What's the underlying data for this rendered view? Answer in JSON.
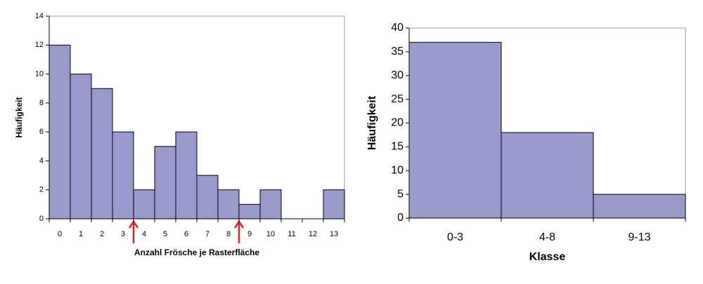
{
  "chart_data": [
    {
      "type": "bar",
      "y_label": "Häufigkeit",
      "x_label": "Anzahl Frösche je Rasterfläche",
      "categories": [
        "0",
        "1",
        "2",
        "3",
        "4",
        "5",
        "6",
        "7",
        "8",
        "9",
        "10",
        "11",
        "12",
        "13"
      ],
      "values": [
        12,
        10,
        9,
        6,
        2,
        5,
        6,
        3,
        2,
        1,
        2,
        0,
        0,
        2
      ],
      "color": "#9999cc",
      "ylim": [
        0,
        14
      ],
      "yticks": [
        0,
        2,
        4,
        6,
        8,
        10,
        12,
        14
      ],
      "grid": false
    },
    {
      "type": "bar",
      "y_label": "Häufigkeit",
      "x_label": "Klasse",
      "categories": [
        "0-3",
        "4-8",
        "9-13"
      ],
      "values": [
        37,
        18,
        5
      ],
      "color": "#9999cc",
      "ylim": [
        0,
        40
      ],
      "yticks": [
        0,
        5,
        10,
        15,
        20,
        25,
        30,
        35,
        40
      ],
      "grid": false
    }
  ]
}
